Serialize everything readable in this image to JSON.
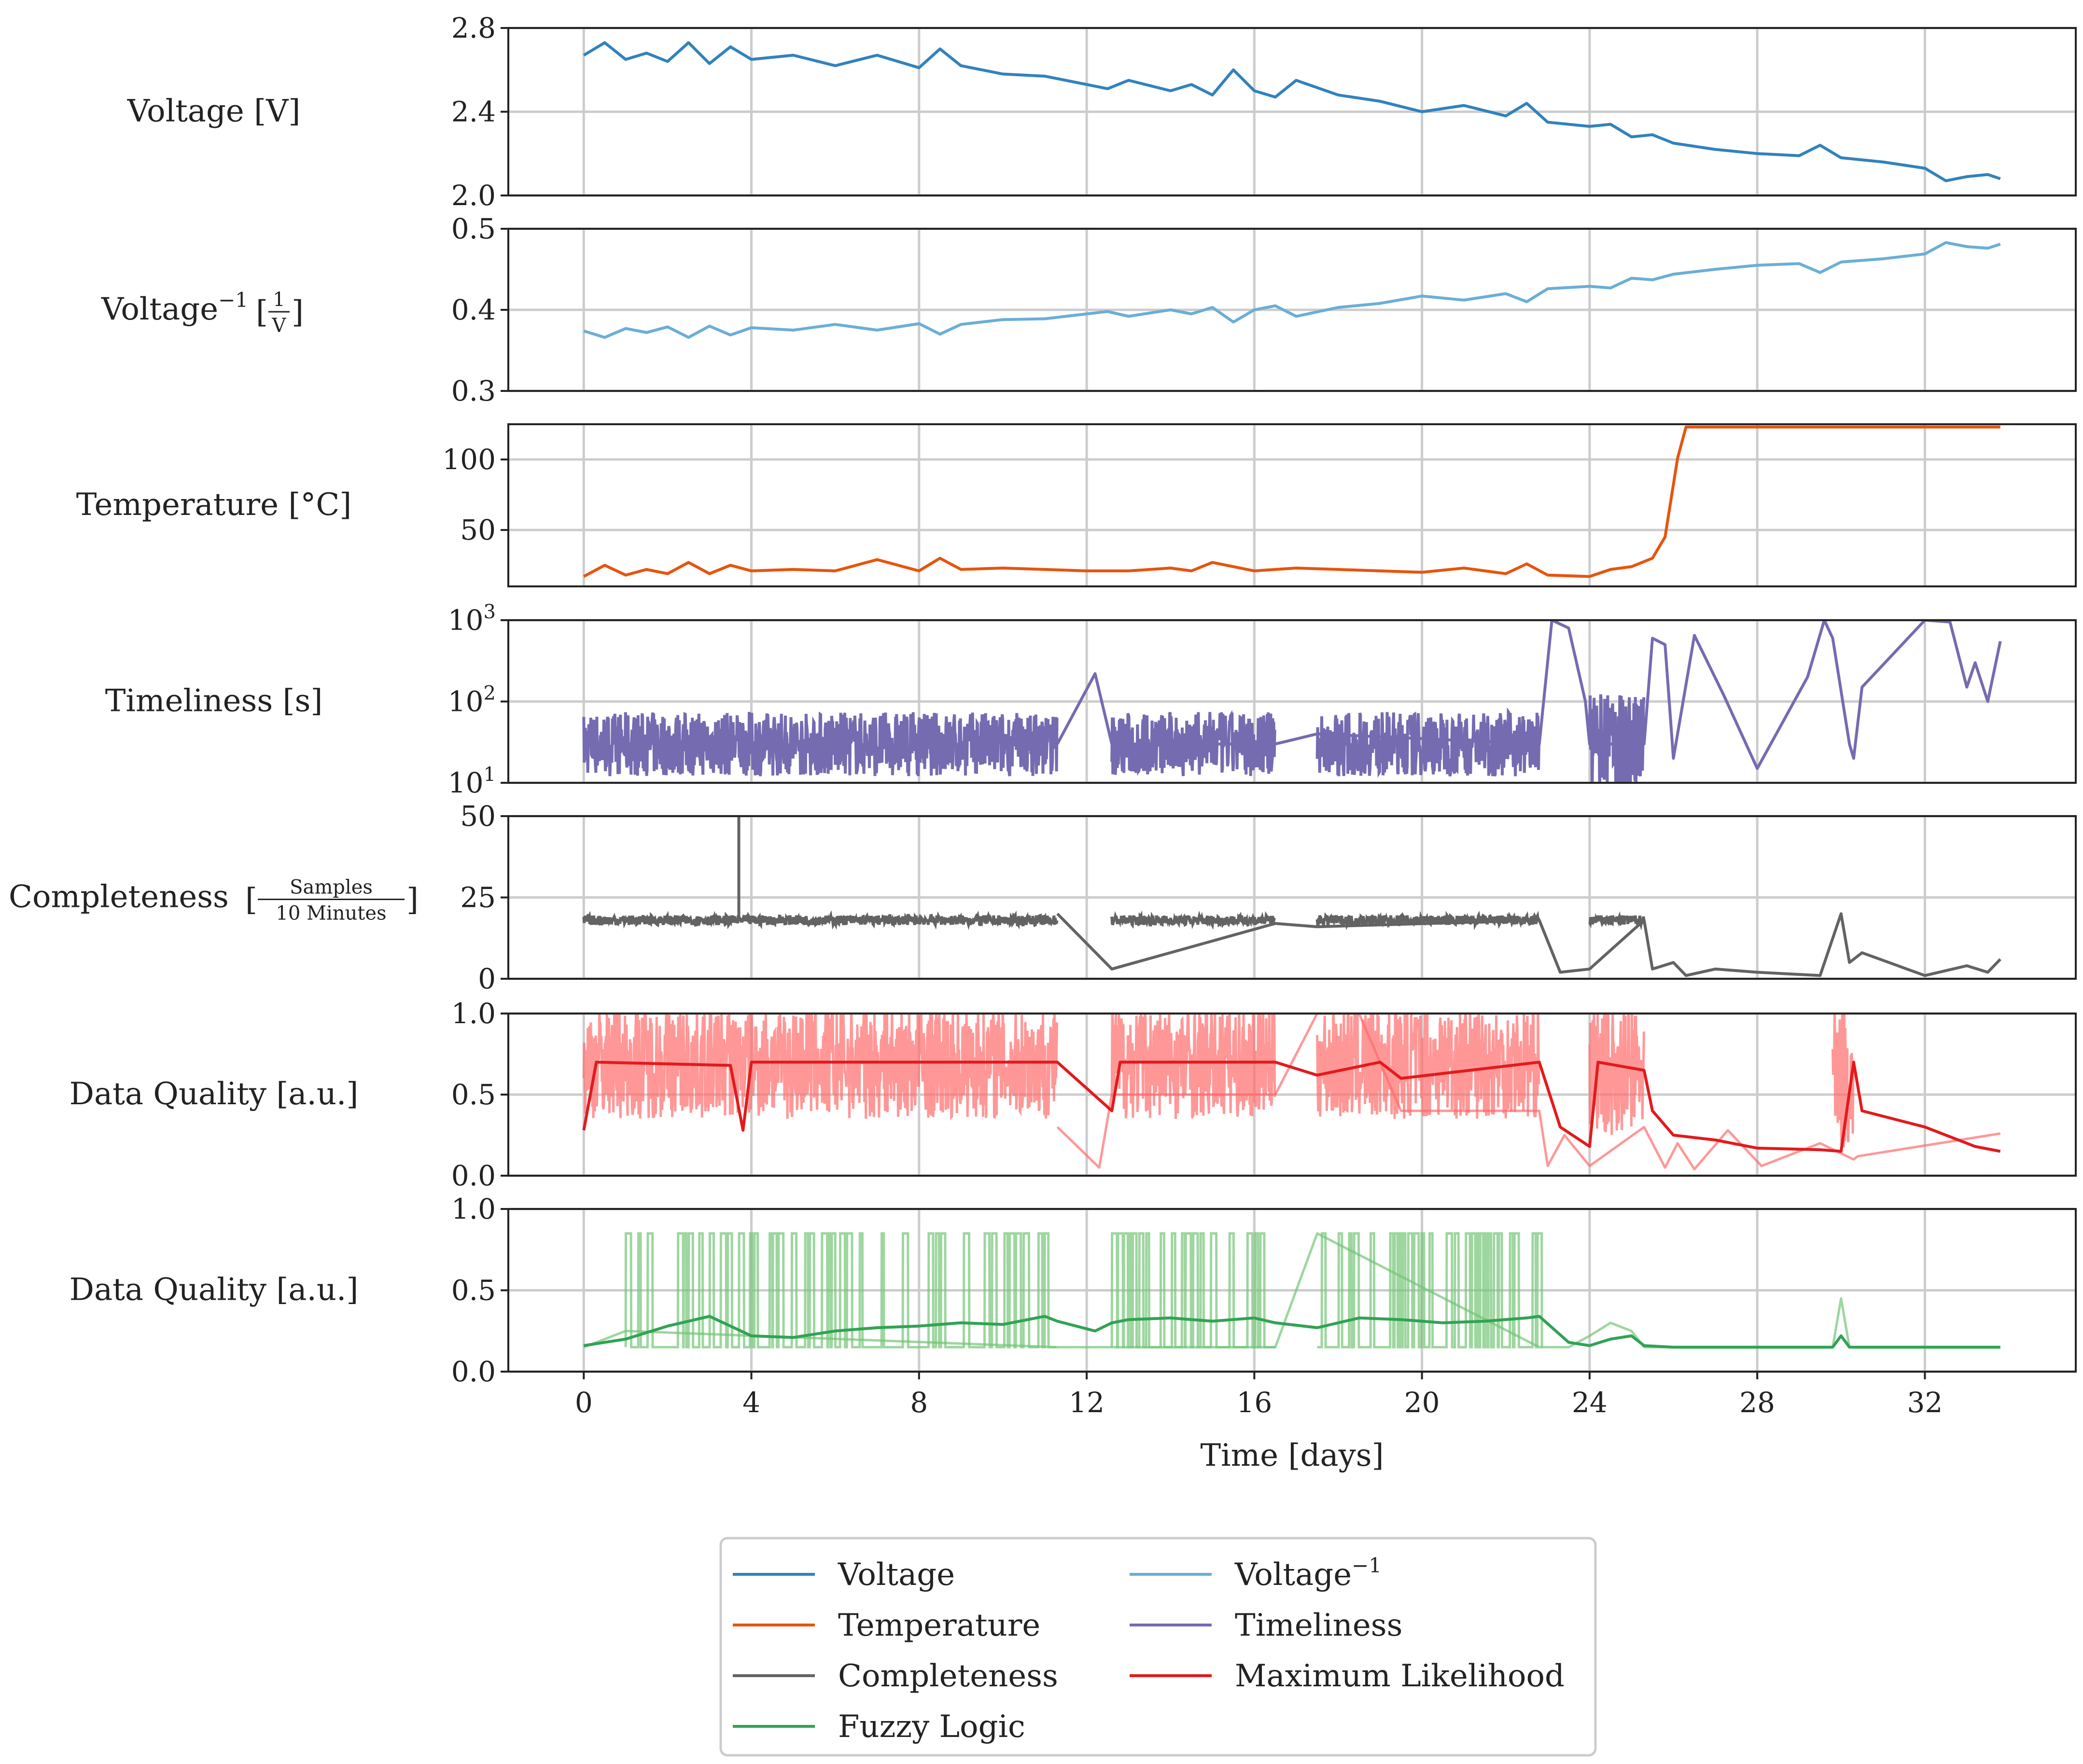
{
  "chart_data": {
    "type": "line",
    "x_axis": {
      "label": "Time [days]",
      "range": [
        -1.8,
        35.6
      ],
      "ticks": [
        0,
        4,
        8,
        12,
        16,
        20,
        24,
        28,
        32
      ]
    },
    "panels": [
      {
        "id": "voltage",
        "ylabel": "Voltage [V]",
        "yscale": "linear",
        "ylim": [
          2.0,
          2.8
        ],
        "yticks": [
          "2.0",
          "2.4",
          "2.8"
        ],
        "ytick_values": [
          2.0,
          2.4,
          2.8
        ],
        "series": [
          "voltage"
        ]
      },
      {
        "id": "voltage_inv",
        "ylabel_main": "Voltage",
        "ylabel_sup": "−1",
        "ylabel_num": "1",
        "ylabel_den": "V",
        "yscale": "linear",
        "ylim": [
          0.3,
          0.5
        ],
        "yticks": [
          "0.3",
          "0.4",
          "0.5"
        ],
        "ytick_values": [
          0.3,
          0.4,
          0.5
        ],
        "series": [
          "voltage_inv"
        ]
      },
      {
        "id": "temperature",
        "ylabel": "Temperature [°C]",
        "yscale": "linear",
        "ylim": [
          10,
          125
        ],
        "yticks": [
          "50",
          "100"
        ],
        "ytick_values": [
          50,
          100
        ],
        "series": [
          "temperature"
        ]
      },
      {
        "id": "timeliness",
        "ylabel": "Timeliness [s]",
        "yscale": "log",
        "ylim": [
          10,
          1000
        ],
        "ytick_base": "10",
        "ytick_exps": [
          "1",
          "2",
          "3"
        ],
        "ytick_values": [
          10,
          100,
          1000
        ],
        "series": [
          "timeliness"
        ]
      },
      {
        "id": "completeness",
        "ylabel_main": "Completeness",
        "ylabel_num": "Samples",
        "ylabel_den": "10 Minutes",
        "yscale": "linear",
        "ylim": [
          0,
          50
        ],
        "yticks": [
          "0",
          "25",
          "50"
        ],
        "ytick_values": [
          0,
          25,
          50
        ],
        "series": [
          "completeness"
        ]
      },
      {
        "id": "dq_ml",
        "ylabel": "Data Quality [a.u.]",
        "yscale": "linear",
        "ylim": [
          0,
          1
        ],
        "yticks": [
          "0.0",
          "0.5",
          "1.0"
        ],
        "ytick_values": [
          0,
          0.5,
          1.0
        ],
        "series": [
          "ml_raw",
          "ml"
        ]
      },
      {
        "id": "dq_fuzzy",
        "ylabel": "Data Quality [a.u.]",
        "yscale": "linear",
        "ylim": [
          0,
          1
        ],
        "yticks": [
          "0.0",
          "0.5",
          "1.0"
        ],
        "ytick_values": [
          0,
          0.5,
          1.0
        ],
        "series": [
          "fuzzy_raw",
          "fuzzy"
        ]
      }
    ],
    "series": {
      "voltage": {
        "name": "Voltage",
        "color": "#3182bd",
        "x": [
          0,
          0.5,
          1,
          1.5,
          2,
          2.5,
          3,
          3.5,
          4,
          5,
          6,
          7,
          8,
          8.5,
          9,
          10,
          11,
          12,
          12.5,
          13,
          14,
          14.5,
          15,
          15.5,
          16,
          16.5,
          17,
          18,
          19,
          20,
          21,
          22,
          22.5,
          23,
          24,
          24.5,
          25,
          25.5,
          26,
          27,
          28,
          29,
          29.5,
          30,
          31,
          32,
          32.5,
          33,
          33.5,
          33.8
        ],
        "y": [
          2.67,
          2.73,
          2.65,
          2.68,
          2.64,
          2.73,
          2.63,
          2.71,
          2.65,
          2.67,
          2.62,
          2.67,
          2.61,
          2.7,
          2.62,
          2.58,
          2.57,
          2.53,
          2.51,
          2.55,
          2.5,
          2.53,
          2.48,
          2.6,
          2.5,
          2.47,
          2.55,
          2.48,
          2.45,
          2.4,
          2.43,
          2.38,
          2.44,
          2.35,
          2.33,
          2.34,
          2.28,
          2.29,
          2.25,
          2.22,
          2.2,
          2.19,
          2.24,
          2.18,
          2.16,
          2.13,
          2.07,
          2.09,
          2.1,
          2.08
        ]
      },
      "voltage_inv": {
        "name": "Voltage⁻¹",
        "color": "#6baed6",
        "x": [
          0,
          0.5,
          1,
          1.5,
          2,
          2.5,
          3,
          3.5,
          4,
          5,
          6,
          7,
          8,
          8.5,
          9,
          10,
          11,
          12,
          12.5,
          13,
          14,
          14.5,
          15,
          15.5,
          16,
          16.5,
          17,
          18,
          19,
          20,
          21,
          22,
          22.5,
          23,
          24,
          24.5,
          25,
          25.5,
          26,
          27,
          28,
          29,
          29.5,
          30,
          31,
          32,
          32.5,
          33,
          33.5,
          33.8
        ],
        "y": [
          0.374,
          0.366,
          0.377,
          0.372,
          0.379,
          0.366,
          0.38,
          0.369,
          0.378,
          0.375,
          0.382,
          0.375,
          0.383,
          0.37,
          0.382,
          0.388,
          0.389,
          0.395,
          0.398,
          0.392,
          0.4,
          0.395,
          0.403,
          0.385,
          0.4,
          0.405,
          0.392,
          0.403,
          0.408,
          0.417,
          0.412,
          0.42,
          0.41,
          0.426,
          0.429,
          0.427,
          0.439,
          0.437,
          0.444,
          0.45,
          0.455,
          0.457,
          0.446,
          0.459,
          0.463,
          0.469,
          0.483,
          0.478,
          0.476,
          0.481
        ]
      },
      "temperature": {
        "name": "Temperature",
        "color": "#e6550d",
        "x": [
          0,
          0.5,
          1,
          1.5,
          2,
          2.5,
          3,
          3.5,
          4,
          5,
          6,
          7,
          8,
          8.5,
          9,
          10,
          11,
          12,
          13,
          14,
          14.5,
          15,
          16,
          17,
          18,
          19,
          20,
          21,
          22,
          22.5,
          23,
          24,
          24.5,
          25,
          25.5,
          25.8,
          26.1,
          26.3,
          27,
          28,
          30,
          32,
          33.8
        ],
        "y": [
          17,
          25,
          18,
          22,
          19,
          27,
          19,
          25,
          21,
          22,
          21,
          29,
          21,
          30,
          22,
          23,
          22,
          21,
          21,
          23,
          21,
          27,
          21,
          23,
          22,
          21,
          20,
          23,
          19,
          26,
          18,
          17,
          22,
          24,
          30,
          45,
          101,
          123,
          123,
          123,
          123,
          123,
          123
        ]
      },
      "timeliness": {
        "name": "Timeliness",
        "color": "#756bb1",
        "noisy_segments": [
          [
            0,
            11.3,
            30,
            0.18
          ],
          [
            12.6,
            16.5,
            30,
            0.18
          ],
          [
            17.5,
            22.8,
            30,
            0.18
          ],
          [
            24,
            25.3,
            30,
            0.28
          ]
        ],
        "x": [
          11.3,
          12.2,
          12.6,
          16.5,
          17.5,
          22.8,
          23.1,
          23.5,
          23.9,
          24.0,
          25.3,
          25.5,
          25.8,
          26.0,
          26.5,
          27.2,
          28,
          29.2,
          29.6,
          29.8,
          30.2,
          30.3,
          30.5,
          32,
          32.6,
          33.0,
          33.2,
          33.5,
          33.8
        ],
        "y": [
          30,
          220,
          30,
          30,
          40,
          30,
          1000,
          800,
          100,
          30,
          30,
          600,
          500,
          20,
          650,
          120,
          15,
          200,
          1000,
          600,
          30,
          20,
          150,
          1000,
          950,
          150,
          300,
          100,
          550
        ]
      },
      "completeness": {
        "name": "Completeness",
        "color": "#636363",
        "noisy_segments": [
          [
            0,
            11.3,
            18,
            1.5
          ],
          [
            12.6,
            16.5,
            18,
            1.5
          ],
          [
            17.5,
            22.8,
            18,
            1.5
          ],
          [
            24,
            25.3,
            18,
            1.5
          ]
        ],
        "spike": [
          3.7,
          50
        ],
        "x": [
          11.3,
          12.6,
          16.5,
          17.5,
          22.8,
          23.3,
          24.0,
          25.3,
          25.5,
          26,
          26.3,
          27,
          28,
          29.5,
          30,
          30.2,
          30.5,
          32,
          33,
          33.5,
          33.8
        ],
        "y": [
          20,
          3,
          17,
          16,
          18,
          2,
          3,
          18,
          3,
          5,
          1,
          3,
          2,
          1,
          20,
          5,
          8,
          1,
          4,
          2,
          6
        ]
      },
      "ml": {
        "name": "Maximum Likelihood",
        "color": "#e31a1c",
        "x": [
          0,
          0.3,
          3.5,
          3.8,
          4,
          11.3,
          12.6,
          12.8,
          16.5,
          17.5,
          19,
          19.5,
          22.8,
          23.3,
          24,
          24.2,
          25.3,
          25.5,
          26,
          27,
          28,
          29.5,
          30,
          30.3,
          30.5,
          32,
          33.2,
          33.8
        ],
        "y": [
          0.28,
          0.7,
          0.68,
          0.28,
          0.7,
          0.7,
          0.4,
          0.7,
          0.7,
          0.62,
          0.7,
          0.6,
          0.7,
          0.3,
          0.18,
          0.7,
          0.65,
          0.4,
          0.25,
          0.22,
          0.17,
          0.16,
          0.15,
          0.7,
          0.4,
          0.3,
          0.18,
          0.15
        ]
      },
      "ml_raw": {
        "name": "Maximum Likelihood (raw)",
        "color": "#ff6b6b",
        "noisy_segments": [
          [
            0,
            11.3,
            0.7,
            0.35
          ],
          [
            12.6,
            16.5,
            0.7,
            0.35
          ],
          [
            17.5,
            22.8,
            0.7,
            0.35
          ],
          [
            24,
            25.3,
            0.65,
            0.4
          ],
          [
            29.8,
            30.3,
            0.6,
            0.45
          ]
        ],
        "x": [
          11.3,
          12.3,
          12.6,
          16.5,
          17.5,
          18.5,
          19.5,
          22.8,
          23.0,
          23.4,
          24.0,
          25.3,
          25.8,
          26.1,
          26.5,
          27.3,
          28.1,
          29.5,
          30.3,
          30.4,
          33.8
        ],
        "y": [
          0.3,
          0.05,
          0.5,
          0.5,
          1.0,
          1.0,
          0.4,
          0.4,
          0.06,
          0.25,
          0.06,
          0.3,
          0.05,
          0.2,
          0.04,
          0.28,
          0.06,
          0.2,
          0.1,
          0.12,
          0.26
        ]
      },
      "fuzzy": {
        "name": "Fuzzy Logic",
        "color": "#31a354",
        "x": [
          0,
          1,
          2,
          3,
          4,
          5,
          6,
          7,
          8,
          9,
          10,
          11,
          11.3,
          12.2,
          12.6,
          13,
          14,
          15,
          16,
          16.5,
          17.5,
          18.5,
          19.5,
          20.5,
          21.5,
          22.5,
          22.8,
          23.5,
          24,
          24.5,
          25,
          25.3,
          26,
          28,
          29.8,
          30.0,
          30.2,
          33.8
        ],
        "y": [
          0.16,
          0.2,
          0.28,
          0.34,
          0.22,
          0.21,
          0.25,
          0.27,
          0.28,
          0.3,
          0.29,
          0.34,
          0.31,
          0.25,
          0.3,
          0.32,
          0.33,
          0.31,
          0.33,
          0.3,
          0.27,
          0.33,
          0.32,
          0.3,
          0.31,
          0.33,
          0.34,
          0.18,
          0.16,
          0.2,
          0.22,
          0.16,
          0.15,
          0.15,
          0.15,
          0.22,
          0.15,
          0.15
        ]
      },
      "fuzzy_raw": {
        "name": "Fuzzy Logic (raw)",
        "color": "#74c476",
        "pulse_segments": [
          [
            1,
            11.3,
            0.15,
            0.85
          ],
          [
            12.6,
            16.5,
            0.15,
            0.85
          ],
          [
            17.5,
            22.8,
            0.15,
            0.85
          ]
        ],
        "x": [
          0,
          1,
          11.3,
          12.6,
          16.5,
          17.5,
          22.8,
          23.5,
          24,
          24.5,
          25,
          25.3,
          26,
          29.8,
          30.0,
          30.2,
          33.8
        ],
        "y": [
          0.15,
          0.25,
          0.15,
          0.15,
          0.15,
          0.85,
          0.15,
          0.15,
          0.22,
          0.3,
          0.25,
          0.15,
          0.15,
          0.15,
          0.45,
          0.15,
          0.15
        ]
      }
    },
    "legend": {
      "placement": "bottom-center",
      "columns": 2,
      "entries": [
        {
          "label": "Voltage",
          "color": "#3182bd"
        },
        {
          "label": "Voltage",
          "sup": "−1",
          "color": "#6baed6"
        },
        {
          "label": "Temperature",
          "color": "#e6550d"
        },
        {
          "label": "Timeliness",
          "color": "#756bb1"
        },
        {
          "label": "Completeness",
          "color": "#636363"
        },
        {
          "label": "Maximum Likelihood",
          "color": "#e31a1c"
        },
        {
          "label": "Fuzzy Logic",
          "color": "#31a354"
        }
      ]
    }
  }
}
